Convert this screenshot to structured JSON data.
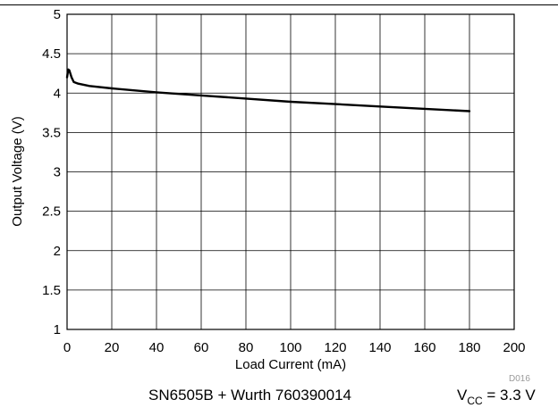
{
  "chart_data": {
    "type": "line",
    "title": "",
    "xlabel": "Load Current (mA)",
    "ylabel": "Output Voltage (V)",
    "xlim": [
      0,
      200
    ],
    "ylim": [
      1,
      5
    ],
    "x_ticks": [
      "0",
      "20",
      "40",
      "60",
      "80",
      "100",
      "120",
      "140",
      "160",
      "180",
      "200"
    ],
    "y_ticks": [
      "1",
      "1.5",
      "2",
      "2.5",
      "3",
      "3.5",
      "4",
      "4.5",
      "5"
    ],
    "grid": true,
    "series": [
      {
        "x": [
          0,
          0.5,
          1,
          2,
          3,
          5,
          10,
          20,
          40,
          60,
          80,
          100,
          120,
          140,
          160,
          180
        ],
        "y": [
          4.2,
          4.3,
          4.29,
          4.2,
          4.14,
          4.12,
          4.09,
          4.06,
          4.01,
          3.97,
          3.93,
          3.89,
          3.86,
          3.83,
          3.8,
          3.77
        ],
        "color": "#000000"
      }
    ]
  },
  "figure_code": "D016",
  "caption": {
    "left": "SN6505B + Wurth 760390014",
    "vcc_prefix": "V",
    "vcc_sub": "CC",
    "vcc_value": " = 3.3 V"
  }
}
